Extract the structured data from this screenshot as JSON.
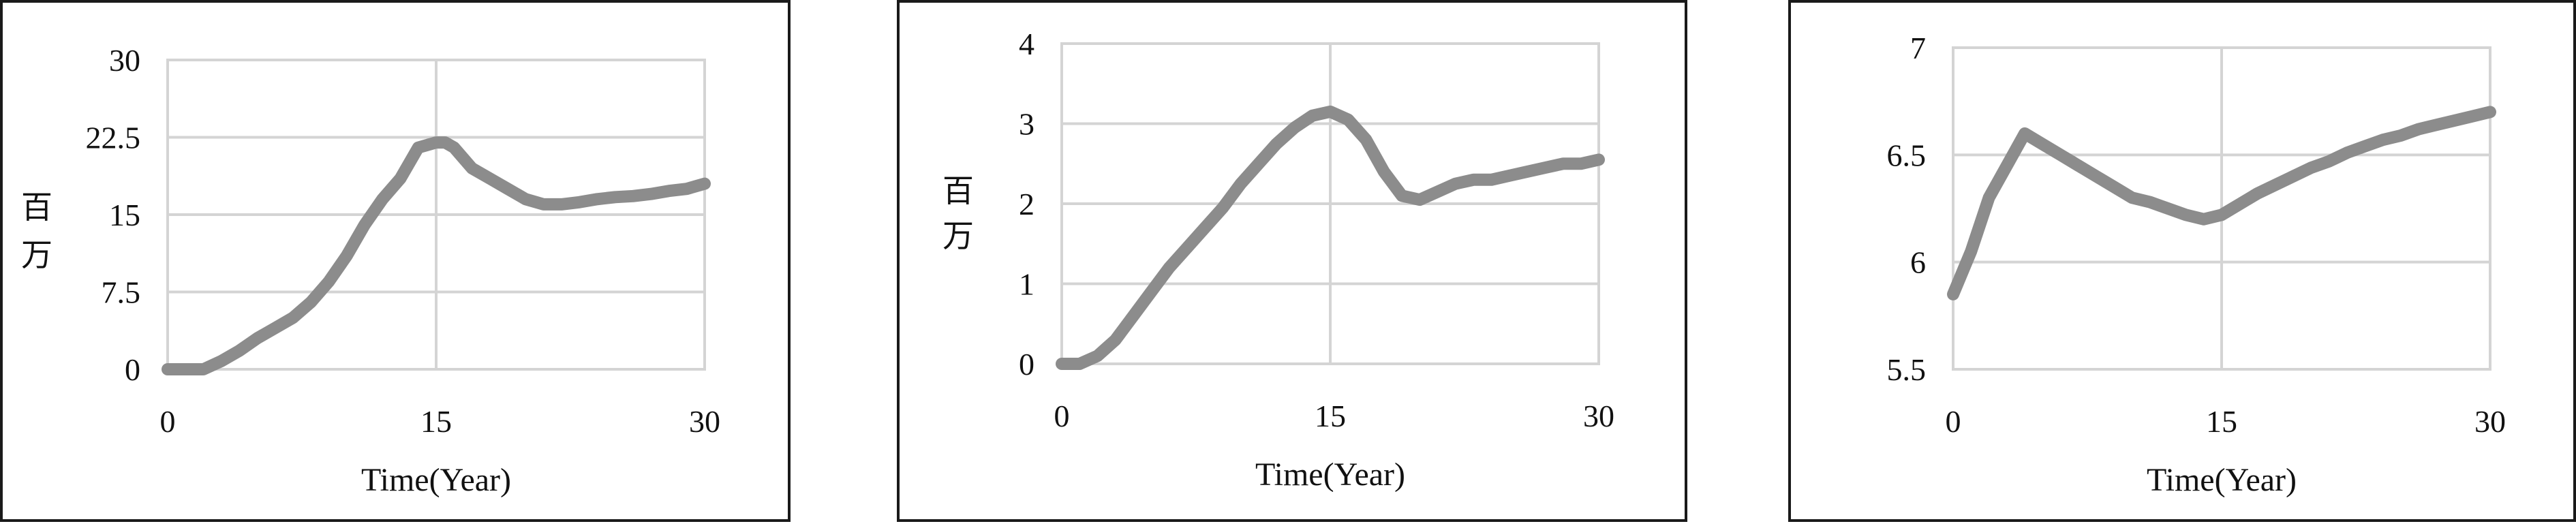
{
  "line_color": "#8c8c8c",
  "chart_data": [
    {
      "type": "line",
      "xlabel": "Time(Year)",
      "ylabel": [
        "百",
        "万"
      ],
      "xlim": [
        0,
        30
      ],
      "ylim": [
        0,
        30
      ],
      "xticks": [
        "0",
        "15",
        "30"
      ],
      "yticks": [
        "0",
        "7.5",
        "15",
        "22.5",
        "30"
      ],
      "grid": true,
      "series": [
        {
          "x": [
            0,
            1,
            2,
            3,
            4,
            5,
            6,
            7,
            8,
            9,
            10,
            11,
            12,
            13,
            14,
            15,
            15.5,
            16,
            16.5,
            17,
            18,
            19,
            20,
            21,
            22,
            23,
            24,
            25,
            26,
            27,
            28,
            29,
            30
          ],
          "values": [
            0,
            0,
            0,
            0.8,
            1.8,
            3.0,
            4.0,
            5.0,
            6.5,
            8.5,
            11.0,
            14.0,
            16.5,
            18.5,
            21.5,
            22.0,
            22.0,
            21.5,
            20.5,
            19.5,
            18.5,
            17.5,
            16.5,
            16.0,
            16.0,
            16.2,
            16.5,
            16.7,
            16.8,
            17.0,
            17.3,
            17.5,
            18.0
          ]
        }
      ]
    },
    {
      "type": "line",
      "xlabel": "Time(Year)",
      "ylabel": [
        "百",
        "万"
      ],
      "xlim": [
        0,
        30
      ],
      "ylim": [
        0,
        4
      ],
      "xticks": [
        "0",
        "15",
        "30"
      ],
      "yticks": [
        "0",
        "1",
        "2",
        "3",
        "4"
      ],
      "grid": true,
      "series": [
        {
          "x": [
            0,
            1,
            2,
            3,
            4,
            5,
            6,
            7,
            8,
            9,
            10,
            11,
            12,
            13,
            14,
            15,
            16,
            17,
            18,
            19,
            20,
            21,
            22,
            23,
            24,
            25,
            26,
            27,
            28,
            29,
            30
          ],
          "values": [
            0,
            0,
            0.1,
            0.3,
            0.6,
            0.9,
            1.2,
            1.45,
            1.7,
            1.95,
            2.25,
            2.5,
            2.75,
            2.95,
            3.1,
            3.15,
            3.05,
            2.8,
            2.4,
            2.1,
            2.05,
            2.15,
            2.25,
            2.3,
            2.3,
            2.35,
            2.4,
            2.45,
            2.5,
            2.5,
            2.55
          ]
        }
      ]
    },
    {
      "type": "line",
      "xlabel": "Time(Year)",
      "ylabel": [],
      "xlim": [
        0,
        30
      ],
      "ylim": [
        5.5,
        7
      ],
      "xticks": [
        "0",
        "15",
        "30"
      ],
      "yticks": [
        "5.5",
        "6",
        "6.5",
        "7"
      ],
      "grid": true,
      "series": [
        {
          "x": [
            0,
            1,
            2,
            3,
            4,
            5,
            6,
            7,
            8,
            9,
            10,
            11,
            12,
            13,
            14,
            15,
            16,
            17,
            18,
            19,
            20,
            21,
            22,
            23,
            24,
            25,
            26,
            27,
            28,
            29,
            30
          ],
          "values": [
            5.85,
            6.05,
            6.3,
            6.45,
            6.6,
            6.55,
            6.5,
            6.45,
            6.4,
            6.35,
            6.3,
            6.28,
            6.25,
            6.22,
            6.2,
            6.22,
            6.27,
            6.32,
            6.36,
            6.4,
            6.44,
            6.47,
            6.51,
            6.54,
            6.57,
            6.59,
            6.62,
            6.64,
            6.66,
            6.68,
            6.7
          ]
        }
      ]
    }
  ]
}
